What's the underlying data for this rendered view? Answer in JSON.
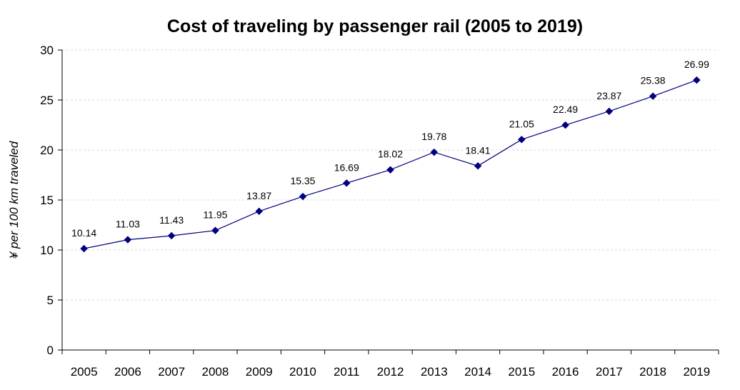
{
  "chart_data": {
    "type": "line",
    "title": "Cost of traveling by passenger rail (2005 to 2019)",
    "xlabel": "",
    "ylabel": "¥ per 100 km traveled",
    "categories": [
      "2005",
      "2006",
      "2007",
      "2008",
      "2009",
      "2010",
      "2011",
      "2012",
      "2013",
      "2014",
      "2015",
      "2016",
      "2017",
      "2018",
      "2019"
    ],
    "series": [
      {
        "values": [
          10.14,
          11.03,
          11.43,
          11.95,
          13.87,
          15.35,
          16.69,
          18.02,
          19.78,
          18.41,
          21.05,
          22.49,
          23.87,
          25.38,
          26.99
        ]
      }
    ],
    "data_labels": [
      "10.14",
      "11.03",
      "11.43",
      "11.95",
      "13.87",
      "15.35",
      "16.69",
      "18.02",
      "19.78",
      "18.41",
      "21.05",
      "22.49",
      "23.87",
      "25.38",
      "26.99"
    ],
    "ylim": [
      0,
      30
    ],
    "yticks": [
      0,
      5,
      10,
      15,
      20,
      25,
      30
    ],
    "ytick_labels": [
      "0",
      "5",
      "10",
      "15",
      "20",
      "25",
      "30"
    ],
    "grid": true,
    "legend": "none",
    "colors": {
      "line": "#000080",
      "marker": "#000080",
      "grid": "#d9d9d9",
      "axis": "#000000"
    },
    "marker": "diamond-icon"
  }
}
